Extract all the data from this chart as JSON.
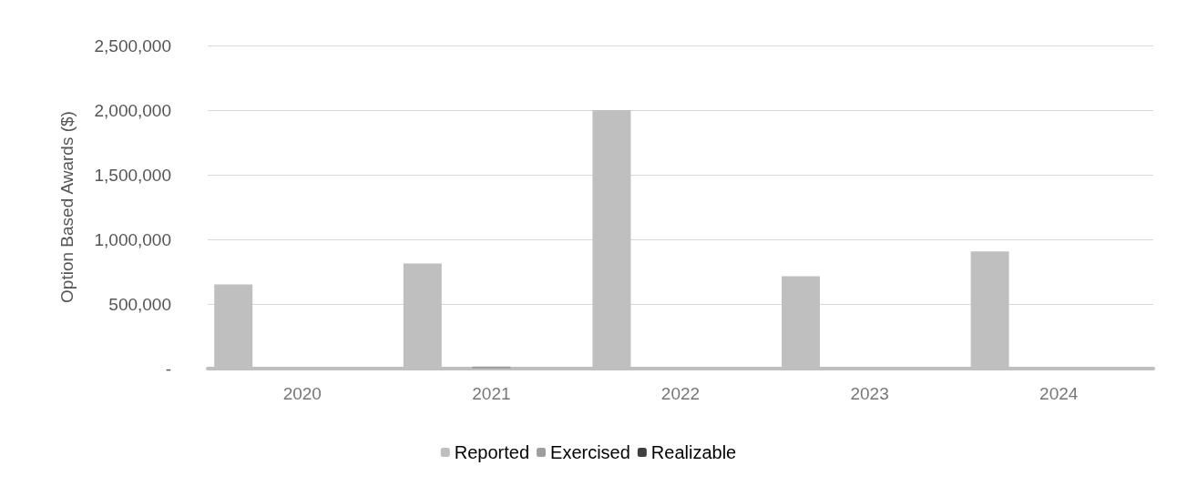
{
  "chart_data": {
    "type": "bar",
    "ylabel": "Option Based Awards ($)",
    "categories": [
      "2020",
      "2021",
      "2022",
      "2023",
      "2024"
    ],
    "series": [
      {
        "name": "Reported",
        "color": "#bfbfbf",
        "values": [
          651000,
          813000,
          2000000,
          714000,
          907000
        ]
      },
      {
        "name": "Exercised",
        "color": "#9e9e9e",
        "values": [
          0,
          15000,
          0,
          0,
          0
        ]
      },
      {
        "name": "Realizable",
        "color": "#404040",
        "values": [
          0,
          0,
          0,
          0,
          0
        ]
      }
    ],
    "ylim": [
      0,
      2500000
    ],
    "yticks": [
      {
        "value": 0,
        "label": "-"
      },
      {
        "value": 500000,
        "label": "500,000"
      },
      {
        "value": 1000000,
        "label": "1,000,000"
      },
      {
        "value": 1500000,
        "label": "1,500,000"
      },
      {
        "value": 2000000,
        "label": "2,000,000"
      },
      {
        "value": 2500000,
        "label": "2,500,000"
      }
    ],
    "grid": "y",
    "legend": "bottom"
  }
}
